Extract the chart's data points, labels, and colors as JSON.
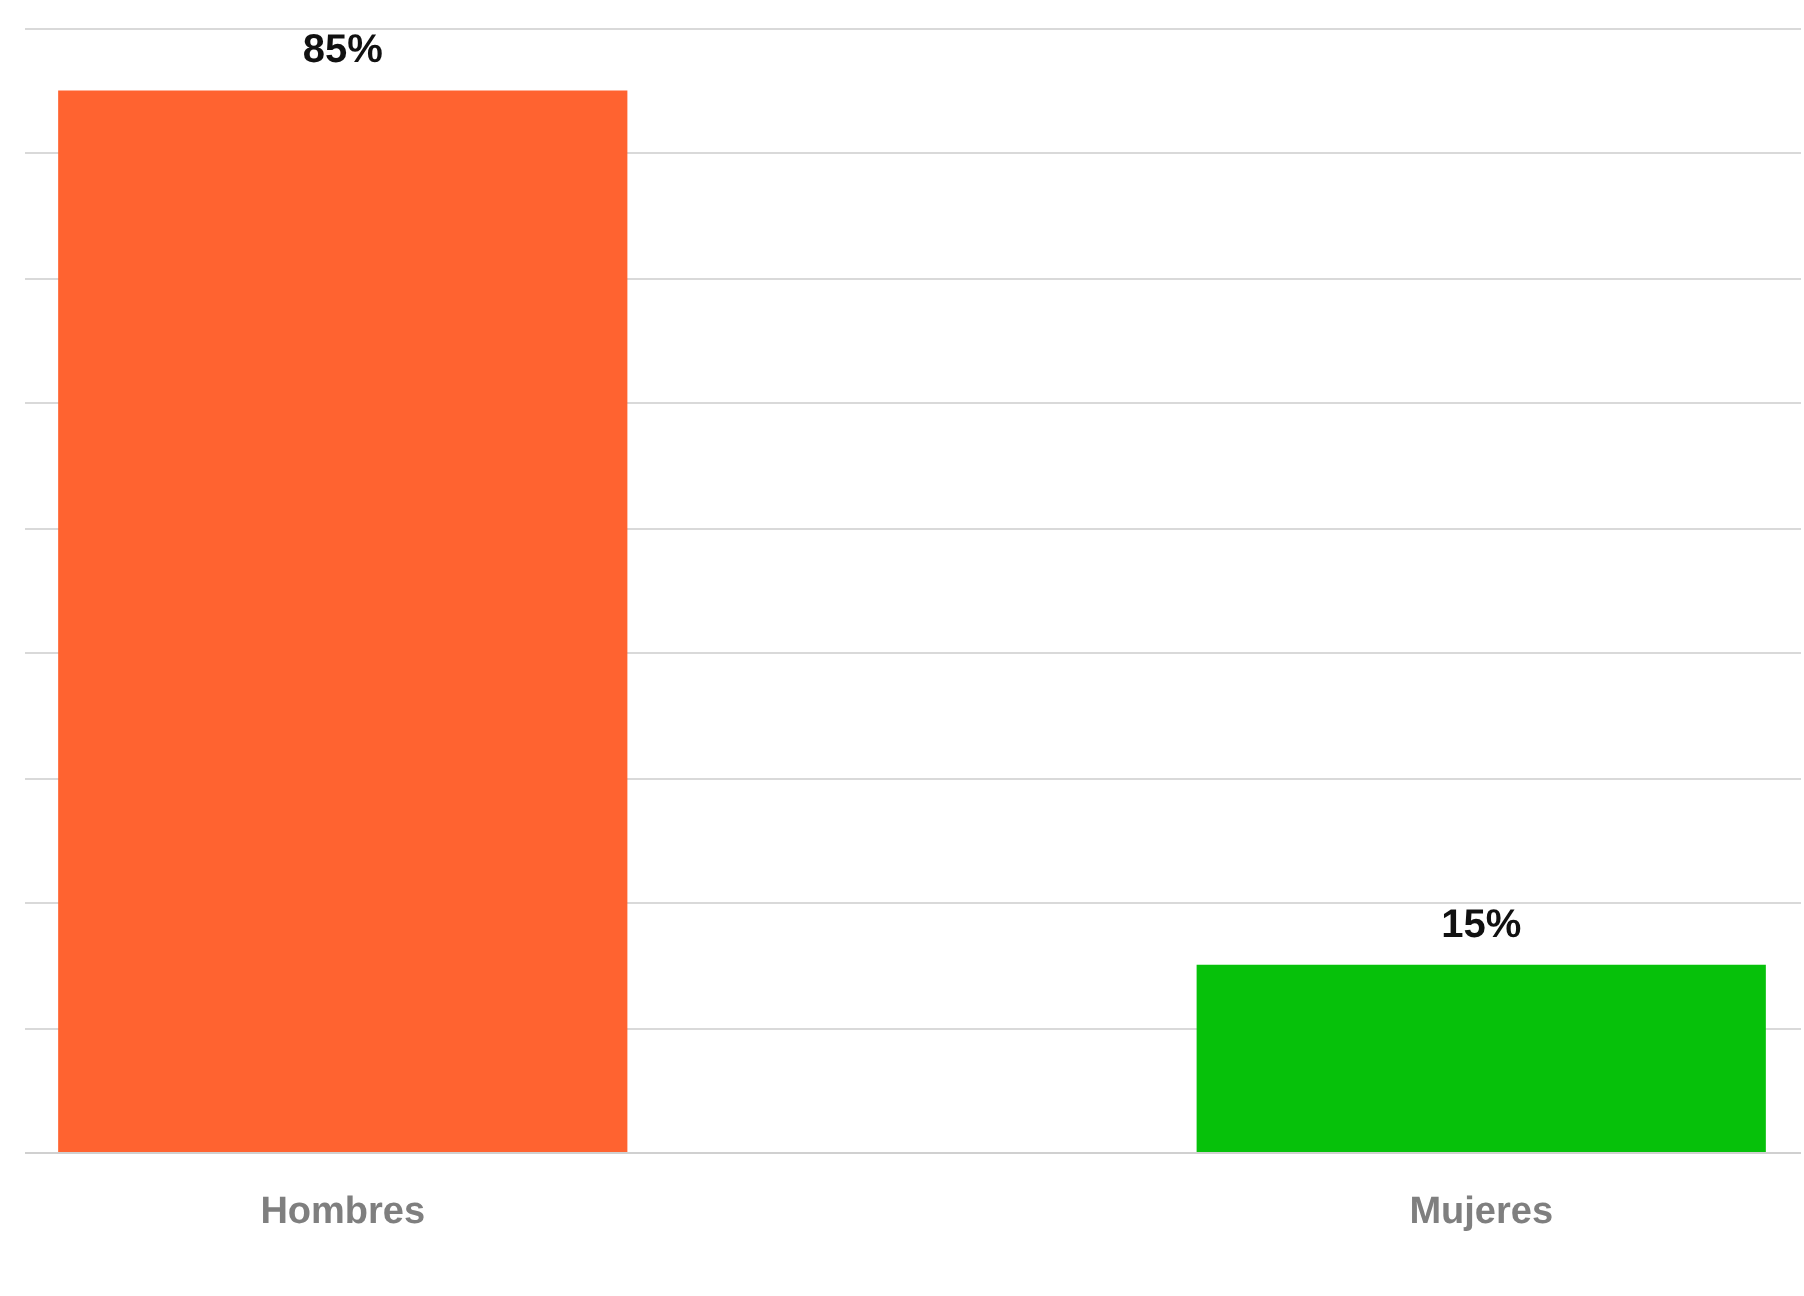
{
  "chart_data": {
    "type": "bar",
    "categories": [
      "Hombres",
      "Mujeres"
    ],
    "values": [
      85,
      15
    ],
    "colors": [
      "#ff6330",
      "#06c10a"
    ],
    "value_labels": [
      "85%",
      "15%"
    ],
    "ylim": [
      0,
      90
    ],
    "yticks": [
      {
        "value": 0,
        "label": null
      },
      {
        "value": 10,
        "label": null
      },
      {
        "value": 20,
        "label": null
      },
      {
        "value": 30,
        "label": null
      },
      {
        "value": 40,
        "label": null
      },
      {
        "value": 50,
        "label": null
      },
      {
        "value": 60,
        "label": null
      },
      {
        "value": 70,
        "label": null
      },
      {
        "value": 80,
        "label": null
      },
      {
        "value": 90,
        "label": null
      }
    ],
    "grid": "y",
    "tick_labels": "x"
  }
}
